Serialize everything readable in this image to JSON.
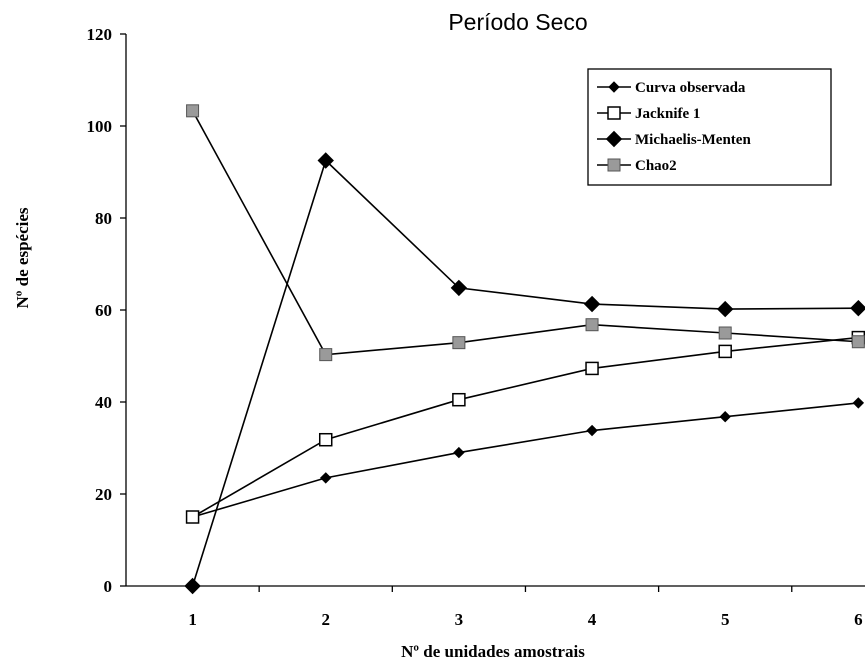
{
  "chart_data": {
    "type": "line",
    "title": "Período Seco",
    "xlabel": "Nº de unidades amostrais",
    "ylabel": "Nº de espécies",
    "x": [
      1,
      2,
      3,
      4,
      5,
      6
    ],
    "xlim": [
      0.5,
      6.05
    ],
    "ylim": [
      0,
      120
    ],
    "yticks": [
      0,
      20,
      40,
      60,
      80,
      100,
      120
    ],
    "grid": false,
    "legend_position": "top-right",
    "series": [
      {
        "name": "Curva observada",
        "marker": "small-diamond",
        "values": [
          15,
          23.5,
          29,
          33.8,
          36.8,
          39.8
        ]
      },
      {
        "name": "Jacknife 1",
        "marker": "open-square",
        "values": [
          15,
          31.8,
          40.5,
          47.3,
          51,
          54
        ]
      },
      {
        "name": "Michaelis-Menten",
        "marker": "large-diamond",
        "values": [
          0,
          92.5,
          64.8,
          61.3,
          60.2,
          60.4
        ]
      },
      {
        "name": "Chao2",
        "marker": "gray-square",
        "values": [
          103.3,
          50.3,
          52.9,
          56.8,
          55,
          53.1
        ]
      }
    ]
  }
}
